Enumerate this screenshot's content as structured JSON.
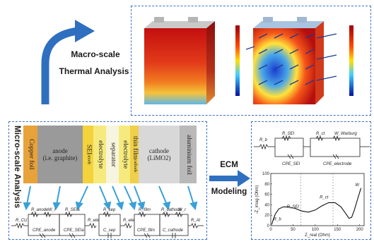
{
  "macro": {
    "label_line1": "Macro-scale",
    "label_line2": "Thermal Analysis"
  },
  "micro": {
    "title": "Micro-scale Analysis",
    "layers": [
      {
        "name": "copper-foil",
        "label": "Copper foil",
        "color": "#e8a23a"
      },
      {
        "name": "anode",
        "label_line1": "anode",
        "label_line2": "(i.e. graphite)",
        "color": "#9a9a9a"
      },
      {
        "name": "sei",
        "label": "SEI",
        "sub": "anode",
        "color": "#f3d23c"
      },
      {
        "name": "electrolyte-1",
        "label": "electrolyte",
        "color": "#f6ea7e"
      },
      {
        "name": "separator",
        "label": "separator",
        "color": "#f7f5df"
      },
      {
        "name": "electrolyte-2",
        "label": "electrolyte",
        "color": "#f6ea7e"
      },
      {
        "name": "thin-film",
        "label": "thin film",
        "sub": "cathode",
        "color": "#f0cf4a"
      },
      {
        "name": "cathode",
        "label_line1": "cathode",
        "label_line2": "(LiMO2)",
        "color": "#d8d8d8"
      },
      {
        "name": "aluminium-foil",
        "label": "aluminium foil",
        "color": "#b9b9b9"
      }
    ]
  },
  "ecm": {
    "label_line1": "ECM",
    "label_line2": "Modeling"
  },
  "micro_circuit": {
    "labels": [
      "R_CU",
      "R_anode",
      "W_r",
      "CPE_anode",
      "R_SEIa",
      "CPE_SEIa",
      "R_ele",
      "R_sep",
      "C_sep",
      "R_ele",
      "R_film",
      "CPE_film",
      "R_cathode",
      "W_r",
      "C_cathode",
      "R_Al"
    ]
  },
  "ecm_circuit": {
    "labels": [
      "R_b",
      "R_SEI",
      "R_ct",
      "W_Warburg",
      "CPE_SEI",
      "CPE_electrode"
    ]
  },
  "chart_data": {
    "type": "line",
    "title": "",
    "xlabel": "Z_real (Ohm)",
    "ylabel": "-Z_imag (Ohm)",
    "xlim": [
      0,
      210
    ],
    "ylim": [
      0,
      100
    ],
    "x_ticks": [
      "0",
      "50",
      "100",
      "150",
      "200"
    ],
    "y_ticks": [
      "0",
      "20",
      "40",
      "60",
      "80",
      "100"
    ],
    "series": [
      {
        "x": [
          2,
          5,
          10,
          18,
          28,
          40,
          55,
          70,
          85,
          100,
          115,
          130,
          145,
          158,
          168,
          176,
          182,
          188,
          195,
          203
        ],
        "y": [
          2,
          10,
          22,
          32,
          36,
          36,
          33,
          28,
          26,
          30,
          38,
          44,
          44,
          36,
          24,
          14,
          16,
          30,
          50,
          72
        ]
      }
    ],
    "annotations": [
      "R_b",
      "R_SEI",
      "R_ct",
      "W"
    ]
  }
}
